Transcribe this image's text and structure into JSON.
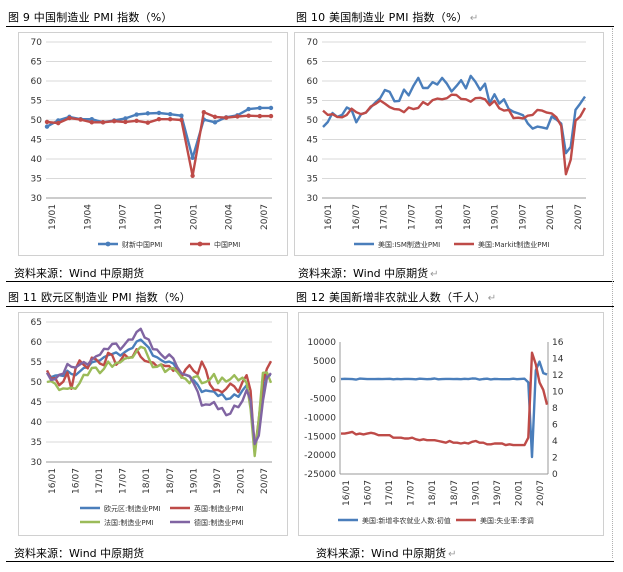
{
  "figures": [
    {
      "title": "图 9  中国制造业 PMI 指数（%）",
      "source": "资料来源：Wind  中原期货",
      "ret": false
    },
    {
      "title": "图 10  美国制造业 PMI 指数（%）",
      "source": "资料来源：Wind  中原期货",
      "ret": true
    },
    {
      "title": "图 11  欧元区制造业 PMI 指数（%）",
      "source": "资料来源：Wind  中原期货",
      "ret": false
    },
    {
      "title": "图 12  美国新增非农就业人数（千人）",
      "source": "资料来源：Wind  中原期货",
      "ret": true
    }
  ],
  "chart_data": [
    {
      "type": "line",
      "title": "",
      "ylim": [
        30,
        70
      ],
      "yticks": [
        30,
        35,
        40,
        45,
        50,
        55,
        60,
        65,
        70
      ],
      "xticks": [
        "19/01",
        "19/04",
        "19/07",
        "19/10",
        "20/01",
        "20/04",
        "20/07"
      ],
      "grid": true,
      "legend": "bottom",
      "series": [
        {
          "name": "财新中国PMI",
          "color": "#4a7ebb",
          "marker": "circle",
          "values": [
            48.3,
            49.9,
            50.8,
            50.2,
            50.2,
            49.4,
            49.9,
            50.4,
            51.4,
            51.7,
            51.8,
            51.5,
            51.1,
            40.3,
            50.1,
            49.4,
            50.7,
            51.2,
            52.8,
            53.1,
            53.1
          ]
        },
        {
          "name": "中国PMI",
          "color": "#be4b48",
          "marker": "circle",
          "values": [
            49.5,
            49.2,
            50.5,
            50.1,
            49.4,
            49.4,
            49.7,
            49.5,
            49.8,
            49.3,
            50.2,
            50.2,
            50.0,
            35.7,
            52.0,
            50.8,
            50.6,
            50.9,
            51.1,
            51.0,
            51.0
          ]
        }
      ]
    },
    {
      "type": "line",
      "title": "",
      "ylim": [
        30,
        70
      ],
      "yticks": [
        30,
        35,
        40,
        45,
        50,
        55,
        60,
        65,
        70
      ],
      "xticks": [
        "16/01",
        "16/07",
        "17/01",
        "17/07",
        "18/01",
        "18/07",
        "19/01",
        "19/07",
        "20/01",
        "20/07"
      ],
      "grid": true,
      "legend": "bottom",
      "series": [
        {
          "name": "美国:ISM制造业PMI",
          "color": "#4a7ebb",
          "values": [
            48.2,
            49.5,
            51.8,
            50.8,
            51.3,
            53.2,
            52.6,
            49.4,
            51.5,
            51.9,
            53.2,
            54.5,
            55.6,
            57.7,
            57.2,
            54.8,
            54.9,
            57.8,
            56.3,
            58.8,
            60.8,
            58.2,
            58.2,
            59.7,
            59.1,
            60.8,
            59.3,
            57.3,
            58.7,
            60.2,
            58.1,
            61.3,
            59.8,
            57.7,
            59.3,
            54.3,
            56.6,
            54.2,
            55.3,
            52.8,
            52.1,
            51.7,
            51.2,
            49.1,
            47.8,
            48.3,
            48.1,
            47.8,
            50.9,
            50.1,
            49.1,
            41.5,
            43.1,
            52.6,
            54.2,
            56.0
          ]
        },
        {
          "name": "美国:Markit制造业PMI",
          "color": "#be4b48",
          "values": [
            52.4,
            51.3,
            51.5,
            50.8,
            50.7,
            51.3,
            52.9,
            52.0,
            51.5,
            51.9,
            53.4,
            54.1,
            55.0,
            54.2,
            53.3,
            52.8,
            52.7,
            52.0,
            53.2,
            52.8,
            53.1,
            54.6,
            53.9,
            55.1,
            55.5,
            55.3,
            55.6,
            56.5,
            56.4,
            55.4,
            55.3,
            54.7,
            55.6,
            55.7,
            55.3,
            53.8,
            54.9,
            53.0,
            52.4,
            52.6,
            50.5,
            50.6,
            50.4,
            51.1,
            51.3,
            52.6,
            52.4,
            51.9,
            51.7,
            50.7,
            48.5,
            36.1,
            39.8,
            49.8,
            50.9,
            53.1
          ]
        }
      ]
    },
    {
      "type": "line",
      "title": "",
      "ylim": [
        30,
        65
      ],
      "yticks": [
        30,
        35,
        40,
        45,
        50,
        55,
        60,
        65
      ],
      "xticks": [
        "16/01",
        "16/07",
        "17/01",
        "17/07",
        "18/01",
        "18/07",
        "19/01",
        "19/07",
        "20/01",
        "20/07"
      ],
      "grid": true,
      "legend": "bottom",
      "series": [
        {
          "name": "欧元区:制造业PMI",
          "color": "#4a7ebb",
          "values": [
            52.3,
            51.2,
            51.6,
            51.7,
            51.5,
            52.8,
            52.0,
            51.7,
            52.6,
            53.5,
            53.7,
            54.9,
            55.2,
            55.4,
            56.2,
            56.7,
            57.0,
            57.4,
            56.6,
            57.4,
            58.1,
            58.5,
            60.1,
            60.6,
            59.6,
            58.6,
            56.6,
            56.2,
            55.5,
            54.9,
            55.1,
            54.6,
            53.2,
            52.0,
            51.8,
            51.4,
            50.5,
            49.3,
            47.5,
            47.9,
            47.7,
            47.6,
            46.5,
            47.0,
            45.7,
            45.9,
            46.9,
            46.3,
            47.9,
            49.2,
            44.5,
            33.4,
            39.4,
            47.4,
            51.8,
            51.7
          ]
        },
        {
          "name": "英国:制造业PMI",
          "color": "#be4b48",
          "values": [
            52.9,
            50.8,
            51.0,
            49.2,
            50.1,
            52.4,
            48.3,
            53.3,
            55.4,
            54.3,
            53.4,
            56.1,
            55.7,
            54.6,
            54.2,
            57.3,
            56.7,
            54.3,
            55.3,
            56.9,
            56.0,
            56.3,
            58.2,
            56.3,
            55.3,
            55.0,
            54.9,
            53.9,
            54.4,
            54.0,
            54.0,
            52.8,
            53.6,
            51.1,
            53.1,
            54.2,
            52.8,
            52.0,
            55.1,
            53.1,
            49.4,
            48.0,
            48.0,
            47.4,
            48.3,
            49.6,
            48.9,
            47.5,
            50.0,
            51.7,
            47.8,
            32.6,
            40.7,
            50.1,
            53.3,
            55.2
          ]
        },
        {
          "name": "法国:制造业PMI",
          "color": "#9bbb59",
          "values": [
            50.0,
            50.2,
            49.6,
            48.0,
            48.4,
            48.3,
            48.6,
            48.3,
            49.7,
            51.8,
            51.7,
            53.5,
            53.6,
            52.2,
            53.3,
            55.1,
            53.8,
            54.8,
            54.9,
            55.8,
            56.1,
            56.1,
            57.7,
            58.8,
            58.4,
            55.9,
            53.7,
            53.8,
            54.4,
            52.5,
            53.3,
            53.5,
            52.5,
            51.2,
            50.8,
            49.7,
            51.2,
            51.5,
            49.7,
            50.0,
            50.6,
            52.0,
            49.7,
            51.1,
            50.1,
            50.7,
            51.7,
            50.4,
            51.1,
            49.8,
            43.2,
            31.5,
            40.6,
            52.3,
            52.4,
            49.8
          ]
        },
        {
          "name": "德国:制造业PMI",
          "color": "#8064a2",
          "values": [
            52.3,
            50.5,
            50.7,
            51.8,
            52.1,
            54.5,
            53.8,
            53.6,
            54.3,
            55.0,
            54.3,
            55.6,
            56.4,
            56.8,
            58.3,
            58.2,
            59.5,
            59.6,
            58.1,
            59.3,
            60.6,
            60.6,
            62.5,
            63.3,
            61.1,
            60.6,
            58.2,
            58.1,
            56.9,
            55.9,
            56.9,
            55.9,
            53.7,
            52.2,
            51.8,
            51.5,
            49.7,
            47.6,
            44.1,
            44.4,
            44.3,
            45.0,
            43.2,
            43.5,
            41.7,
            42.1,
            44.1,
            43.7,
            45.3,
            48.0,
            45.4,
            34.5,
            36.6,
            45.2,
            51.0,
            52.2
          ]
        }
      ]
    },
    {
      "type": "line",
      "title": "",
      "ylim": [
        -25000,
        10000
      ],
      "yticks": [
        -25000,
        -20000,
        -15000,
        -10000,
        -5000,
        0,
        5000,
        10000
      ],
      "y2lim": [
        0,
        16
      ],
      "y2ticks": [
        0,
        2,
        4,
        6,
        8,
        10,
        12,
        14,
        16
      ],
      "xticks": [
        "16/01",
        "16/07",
        "17/01",
        "17/07",
        "18/01",
        "18/07",
        "19/01",
        "19/07",
        "20/01",
        "20/07"
      ],
      "grid": false,
      "legend": "bottom",
      "series": [
        {
          "name": "美国:新增非农就业人数:初值",
          "color": "#4a7ebb",
          "axis": "left",
          "values": [
            151,
            242,
            215,
            160,
            38,
            287,
            255,
            151,
            156,
            161,
            178,
            156,
            227,
            235,
            98,
            211,
            138,
            222,
            209,
            156,
            98,
            261,
            228,
            148,
            200,
            313,
            103,
            164,
            223,
            213,
            157,
            201,
            134,
            250,
            155,
            312,
            304,
            20,
            196,
            263,
            75,
            224,
            164,
            130,
            136,
            128,
            266,
            145,
            225,
            273,
            -701,
            -20500,
            2509,
            4800,
            1763,
            1371
          ]
        },
        {
          "name": "美国:失业率:季调",
          "color": "#be4b48",
          "axis": "right",
          "values": [
            4.9,
            4.9,
            5.0,
            5.1,
            4.8,
            4.9,
            4.8,
            4.9,
            5.0,
            4.9,
            4.7,
            4.7,
            4.7,
            4.7,
            4.4,
            4.4,
            4.4,
            4.3,
            4.3,
            4.4,
            4.2,
            4.1,
            4.2,
            4.1,
            4.1,
            4.1,
            4.0,
            3.9,
            3.8,
            4.0,
            3.8,
            3.8,
            3.7,
            3.8,
            3.7,
            3.9,
            4.0,
            3.8,
            3.8,
            3.6,
            3.6,
            3.7,
            3.7,
            3.7,
            3.5,
            3.6,
            3.5,
            3.5,
            3.5,
            3.5,
            4.4,
            14.7,
            13.3,
            11.1,
            10.2,
            8.4
          ]
        }
      ]
    }
  ]
}
